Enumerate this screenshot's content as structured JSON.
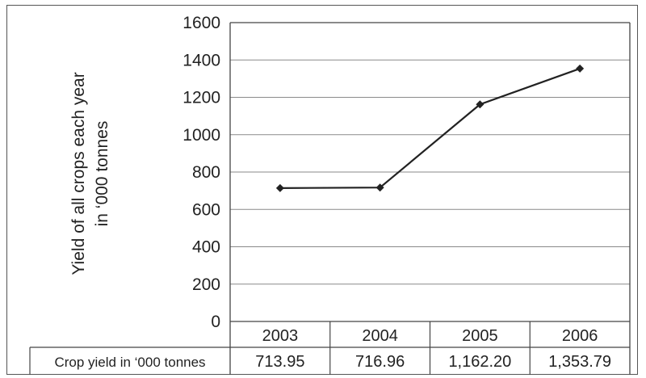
{
  "chart_data": {
    "type": "line",
    "ylabel_lines": [
      "Yield of all crops each year",
      "in ‘000 tonnes"
    ],
    "categories": [
      "2003",
      "2004",
      "2005",
      "2006"
    ],
    "series": [
      {
        "values": [
          713.95,
          716.96,
          1162.2,
          1353.79
        ]
      }
    ],
    "y_ticks": [
      "0",
      "200",
      "400",
      "600",
      "800",
      "1000",
      "1200",
      "1400",
      "1600"
    ],
    "ylim": [
      0,
      1600
    ],
    "grid": true,
    "marker": "diamond",
    "line_color": "#222222",
    "table": {
      "row_header": "Crop yield in ‘000 tonnes",
      "cells": [
        "713.95",
        "716.96",
        "1,162.20",
        "1,353.79"
      ]
    }
  }
}
